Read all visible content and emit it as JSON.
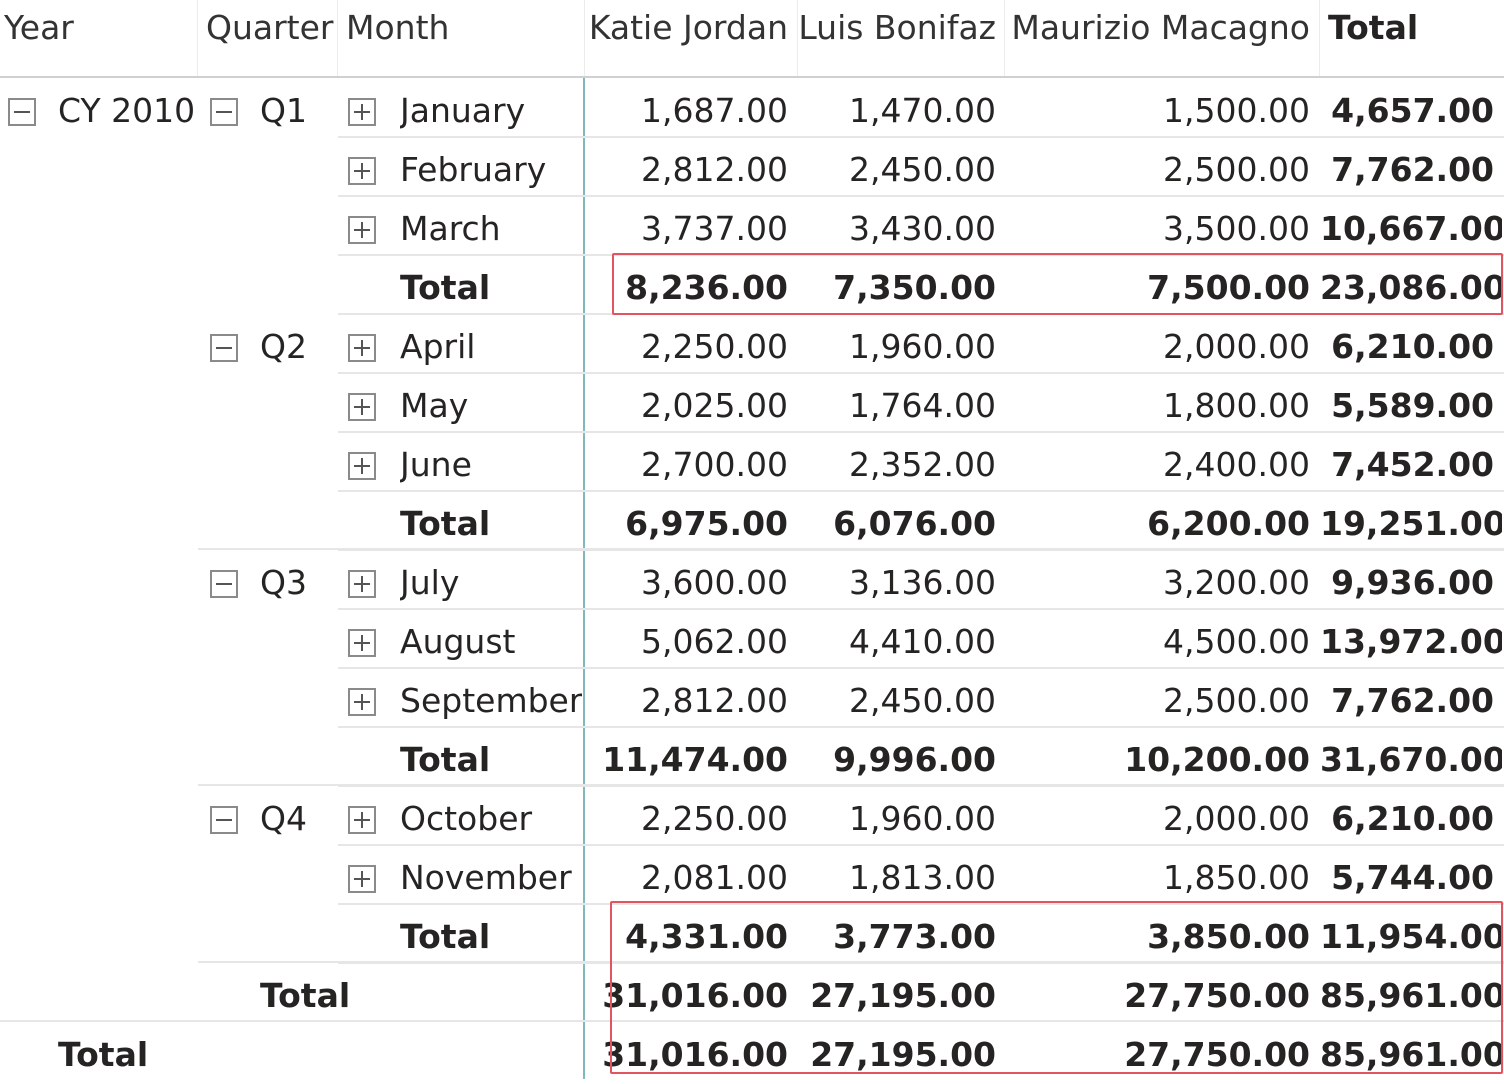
{
  "headers": {
    "year": "Year",
    "quarter": "Quarter",
    "month": "Month",
    "katie": "Katie Jordan",
    "luis": "Luis Bonifaz",
    "maurizio": "Maurizio Macagno",
    "total": "Total"
  },
  "year": {
    "label": "CY 2010",
    "total_label": "Total"
  },
  "quarters": [
    {
      "label": "Q1",
      "total_label": "Total"
    },
    {
      "label": "Q2",
      "total_label": "Total"
    },
    {
      "label": "Q3",
      "total_label": "Total"
    },
    {
      "label": "Q4",
      "total_label": "Total"
    }
  ],
  "rows": [
    {
      "kind": "month",
      "label": "January",
      "katie": "1,687.00",
      "luis": "1,470.00",
      "maurizio": "1,500.00",
      "total": "4,657.00"
    },
    {
      "kind": "month",
      "label": "February",
      "katie": "2,812.00",
      "luis": "2,450.00",
      "maurizio": "2,500.00",
      "total": "7,762.00"
    },
    {
      "kind": "month",
      "label": "March",
      "katie": "3,737.00",
      "luis": "3,430.00",
      "maurizio": "3,500.00",
      "total": "10,667.00"
    },
    {
      "kind": "qtotal",
      "label": "Total",
      "katie": "8,236.00",
      "luis": "7,350.00",
      "maurizio": "7,500.00",
      "total": "23,086.00"
    },
    {
      "kind": "month",
      "label": "April",
      "katie": "2,250.00",
      "luis": "1,960.00",
      "maurizio": "2,000.00",
      "total": "6,210.00"
    },
    {
      "kind": "month",
      "label": "May",
      "katie": "2,025.00",
      "luis": "1,764.00",
      "maurizio": "1,800.00",
      "total": "5,589.00"
    },
    {
      "kind": "month",
      "label": "June",
      "katie": "2,700.00",
      "luis": "2,352.00",
      "maurizio": "2,400.00",
      "total": "7,452.00"
    },
    {
      "kind": "qtotal",
      "label": "Total",
      "katie": "6,975.00",
      "luis": "6,076.00",
      "maurizio": "6,200.00",
      "total": "19,251.00"
    },
    {
      "kind": "month",
      "label": "July",
      "katie": "3,600.00",
      "luis": "3,136.00",
      "maurizio": "3,200.00",
      "total": "9,936.00"
    },
    {
      "kind": "month",
      "label": "August",
      "katie": "5,062.00",
      "luis": "4,410.00",
      "maurizio": "4,500.00",
      "total": "13,972.00"
    },
    {
      "kind": "month",
      "label": "September",
      "katie": "2,812.00",
      "luis": "2,450.00",
      "maurizio": "2,500.00",
      "total": "7,762.00"
    },
    {
      "kind": "qtotal",
      "label": "Total",
      "katie": "11,474.00",
      "luis": "9,996.00",
      "maurizio": "10,200.00",
      "total": "31,670.00"
    },
    {
      "kind": "month",
      "label": "October",
      "katie": "2,250.00",
      "luis": "1,960.00",
      "maurizio": "2,000.00",
      "total": "6,210.00"
    },
    {
      "kind": "month",
      "label": "November",
      "katie": "2,081.00",
      "luis": "1,813.00",
      "maurizio": "1,850.00",
      "total": "5,744.00"
    },
    {
      "kind": "qtotal",
      "label": "Total",
      "katie": "4,331.00",
      "luis": "3,773.00",
      "maurizio": "3,850.00",
      "total": "11,954.00"
    },
    {
      "kind": "ytotal",
      "label": "Total",
      "katie": "31,016.00",
      "luis": "27,195.00",
      "maurizio": "27,750.00",
      "total": "85,961.00"
    },
    {
      "kind": "gtotal",
      "label": "Total",
      "katie": "31,016.00",
      "luis": "27,195.00",
      "maurizio": "27,750.00",
      "total": "85,961.00"
    }
  ],
  "colors": {
    "highlight": "#e05560",
    "divider": "#7fb9bd"
  }
}
